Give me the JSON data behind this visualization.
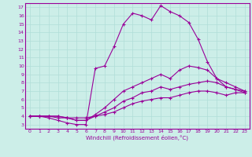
{
  "xlabel": "Windchill (Refroidissement éolien,°C)",
  "bg_color": "#cceee8",
  "grid_color": "#b0ddd8",
  "line_color": "#990099",
  "xmin": 0,
  "xmax": 23,
  "ymin": 3,
  "ymax": 17,
  "line1_x": [
    0,
    1,
    2,
    3,
    4,
    5,
    6,
    7,
    8,
    9,
    10,
    11,
    12,
    13,
    14,
    15,
    16,
    17,
    18,
    19,
    20,
    21,
    22,
    23
  ],
  "line1_y": [
    4.0,
    4.0,
    3.8,
    3.5,
    3.2,
    3.0,
    3.0,
    9.7,
    10.0,
    12.3,
    15.0,
    16.3,
    16.0,
    15.5,
    17.2,
    16.5,
    16.0,
    15.2,
    13.2,
    10.5,
    8.5,
    7.5,
    7.2,
    7.0
  ],
  "line2_x": [
    0,
    1,
    2,
    3,
    4,
    5,
    6,
    7,
    8,
    9,
    10,
    11,
    12,
    13,
    14,
    15,
    16,
    17,
    18,
    19,
    20,
    21,
    22,
    23
  ],
  "line2_y": [
    4.0,
    4.0,
    4.0,
    4.0,
    3.8,
    3.5,
    3.5,
    4.2,
    5.0,
    6.0,
    7.0,
    7.5,
    8.0,
    8.5,
    9.0,
    8.5,
    9.5,
    10.0,
    9.8,
    9.5,
    8.5,
    8.0,
    7.5,
    7.0
  ],
  "line3_x": [
    0,
    1,
    2,
    3,
    4,
    5,
    6,
    7,
    8,
    9,
    10,
    11,
    12,
    13,
    14,
    15,
    16,
    17,
    18,
    19,
    20,
    21,
    22,
    23
  ],
  "line3_y": [
    4.0,
    4.0,
    4.0,
    3.8,
    3.8,
    3.5,
    3.5,
    4.0,
    4.5,
    5.0,
    5.8,
    6.2,
    6.8,
    7.0,
    7.5,
    7.2,
    7.5,
    7.8,
    8.0,
    8.2,
    8.0,
    7.5,
    7.2,
    6.8
  ],
  "line4_x": [
    0,
    1,
    2,
    3,
    4,
    5,
    6,
    7,
    8,
    9,
    10,
    11,
    12,
    13,
    14,
    15,
    16,
    17,
    18,
    19,
    20,
    21,
    22,
    23
  ],
  "line4_y": [
    4.0,
    4.0,
    4.0,
    4.0,
    3.8,
    3.8,
    3.8,
    4.0,
    4.2,
    4.5,
    5.0,
    5.5,
    5.8,
    6.0,
    6.2,
    6.2,
    6.5,
    6.8,
    7.0,
    7.0,
    6.8,
    6.5,
    6.8,
    6.8
  ]
}
